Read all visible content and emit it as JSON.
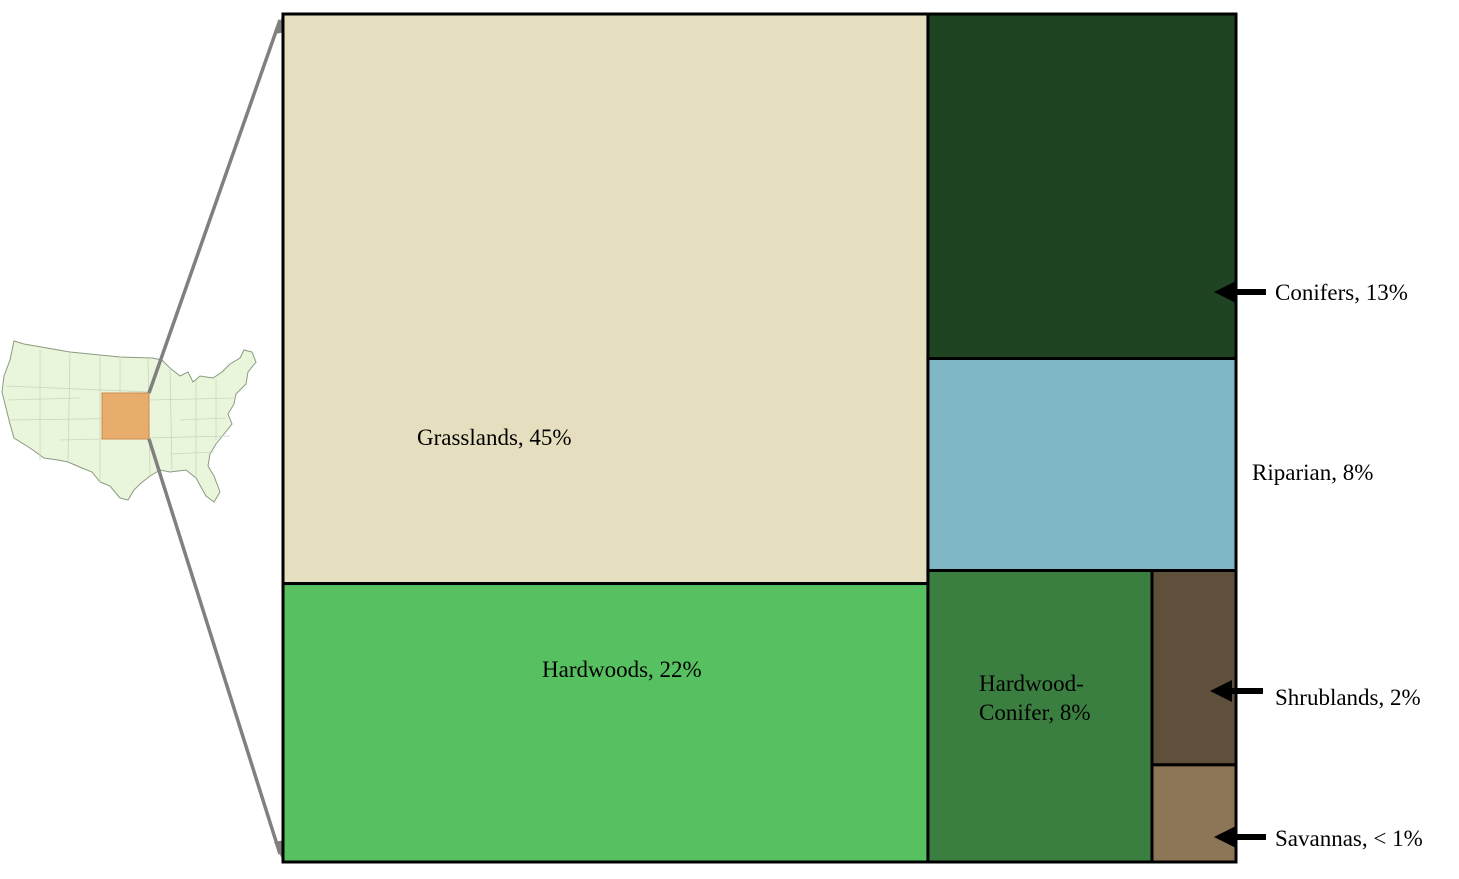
{
  "chart_data": {
    "type": "treemap",
    "title": "",
    "values_unit": "%",
    "colors": {
      "border": "#000000",
      "grasslands": "#e5dfbf",
      "hardwoods": "#57c061",
      "conifers": "#1e4421",
      "riparian": "#7fb7c7",
      "hardwood_conifer": "#3a7f40",
      "shrublands": "#5e503a",
      "savannas": "#8d7658",
      "map_land": "#eaf6dc",
      "map_border": "#8a9a80",
      "region_highlight": "#e8ad6d",
      "zoom_lines": "#808080"
    },
    "series": [
      {
        "key": "grasslands",
        "label": "Grasslands, 45%",
        "value": 45
      },
      {
        "key": "hardwoods",
        "label": "Hardwoods, 22%",
        "value": 22
      },
      {
        "key": "conifers",
        "label": "Conifers, 13%",
        "value": 13
      },
      {
        "key": "riparian",
        "label": "Riparian, 8%",
        "value": 8
      },
      {
        "key": "hardwood_conifer",
        "label_line1": "Hardwood-",
        "label_line2": "Conifer, 8%",
        "value": 8
      },
      {
        "key": "shrublands",
        "label": "Shrublands, 2%",
        "value": 2
      },
      {
        "key": "savannas",
        "label": "Savannas, < 1%",
        "value": 1
      }
    ],
    "inset_map": {
      "icon": "us-map-icon",
      "highlight_icon": "study-region-square"
    }
  }
}
